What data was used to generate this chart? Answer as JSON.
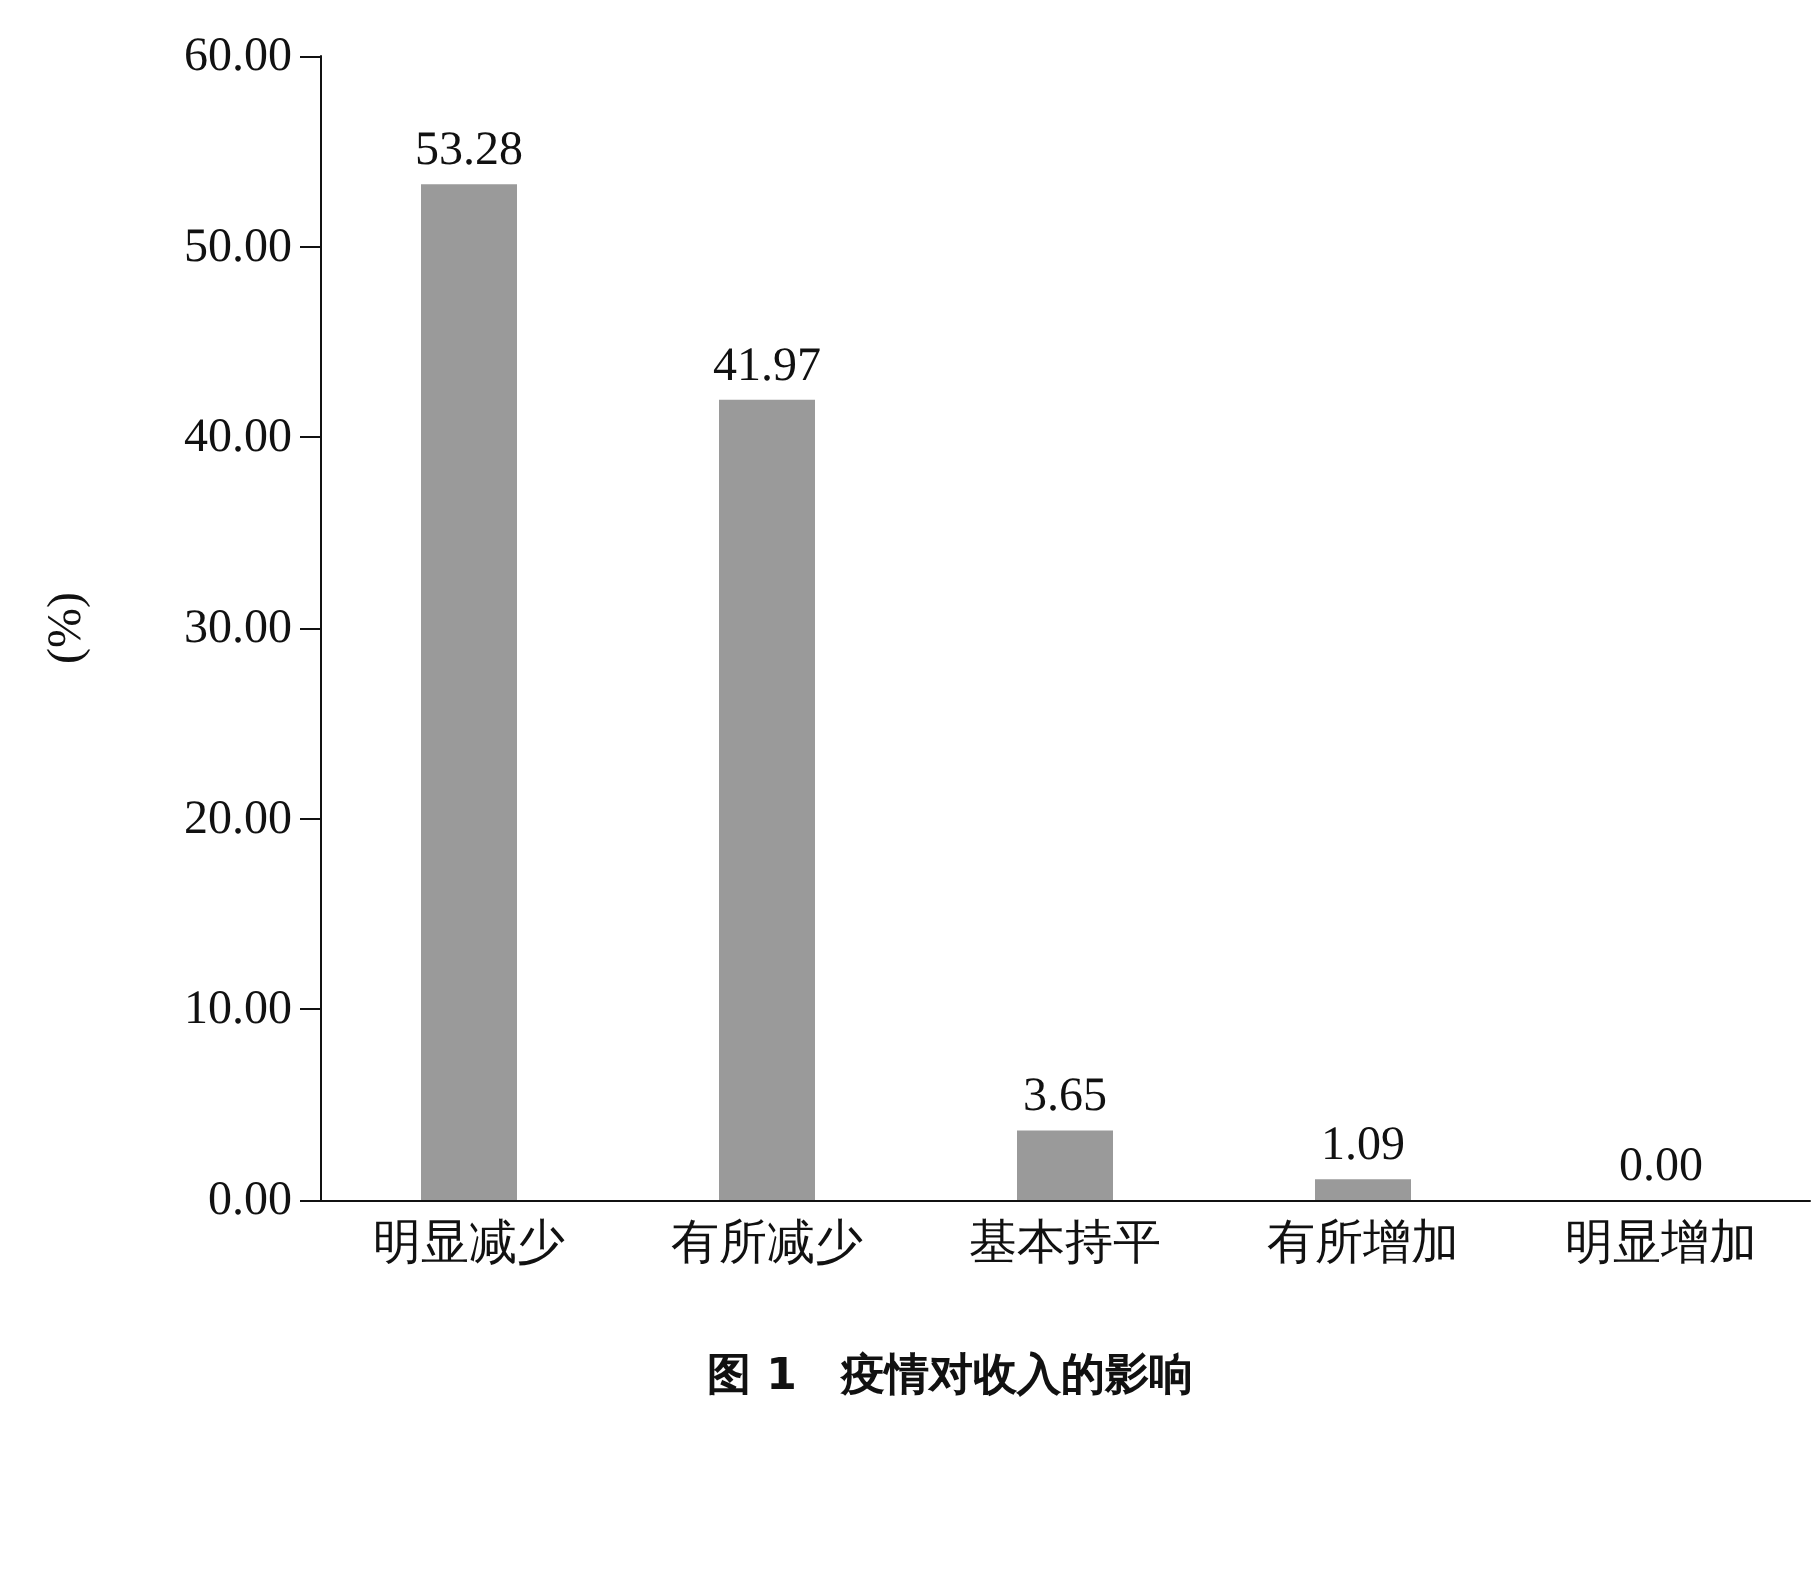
{
  "chart_data": {
    "type": "bar",
    "title": "图 1　疫情对收入的影响",
    "ylabel": "(%)",
    "categories": [
      "明显减少",
      "有所减少",
      "基本持平",
      "有所增加",
      "明显增加"
    ],
    "values": [
      53.28,
      41.97,
      3.65,
      1.09,
      0
    ],
    "value_labels": [
      "53.28",
      "41.97",
      "3.65",
      "1.09",
      "0.00"
    ],
    "color": "#9a9a9a",
    "ylim": [
      0,
      60
    ],
    "yticks": [
      {
        "value": 0,
        "label": "0.00"
      },
      {
        "value": 10,
        "label": "10.00"
      },
      {
        "value": 20,
        "label": "20.00"
      },
      {
        "value": 30,
        "label": "30.00"
      },
      {
        "value": 40,
        "label": "40.00"
      },
      {
        "value": 50,
        "label": "50.00"
      },
      {
        "value": 60,
        "label": "60.00"
      }
    ],
    "grid": false
  }
}
